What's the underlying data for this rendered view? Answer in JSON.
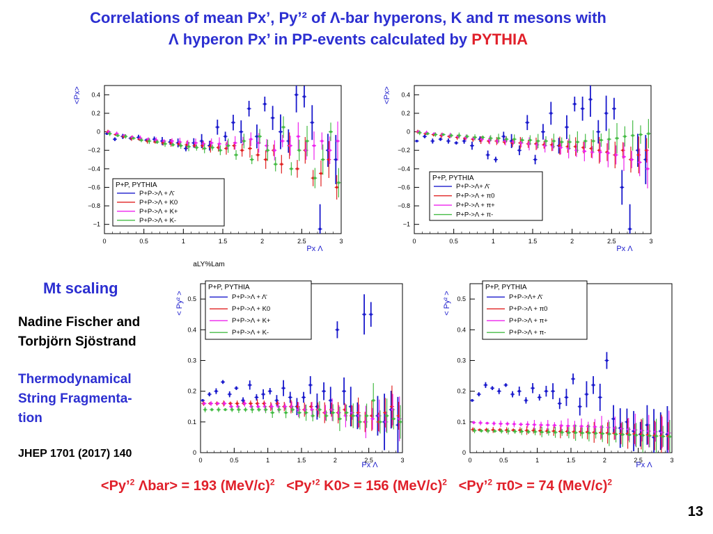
{
  "title": {
    "line1": "Correlations of mean Px’, Py’² of Λ-bar hyperons,  K  and π mesons with",
    "line2_prefix": "Λ  hyperon Px’ in PP-events calculated by",
    "line2_highlight": "PYTHIA"
  },
  "sidebar": {
    "mt_scaling": "Mt scaling",
    "authors_line1": "Nadine Fischer and",
    "authors_line2": "Torbjörn Sjöstrand",
    "tsf_line1": "Thermodynamical",
    "tsf_line2": "String Fragmenta-",
    "tsf_line3": "tion",
    "reference": "JHEP 1701 (2017) 140"
  },
  "bottom_line": {
    "item1_label": "<Py’",
    "item1_rest": " Λbar> = 193 (MeV/c)",
    "item2_label": "<Py’",
    "item2_rest": " K0> = 156 (MeV/c)",
    "item3_label": "<Py’",
    "item3_rest": " π0> = 74 (MeV/c)",
    "sup": "2"
  },
  "page_number": "13",
  "colors": {
    "title": "#2c2fd1",
    "highlight": "#e0202a",
    "series_lambda_bar": "#1a1acc",
    "series_k0_pi0": "#e02020",
    "series_kplus_piplus": "#ee22ee",
    "series_kminus_piminus": "#44bb44"
  },
  "chart_data": [
    {
      "type": "scatter",
      "panel": "top-left",
      "ylabel": "<Px>",
      "xlabel": "Px Λ",
      "below_label": "aLY%Lam",
      "xlim": [
        0,
        3
      ],
      "ylim": [
        -1.1,
        0.5
      ],
      "xticks": [
        "0",
        "0.5",
        "1",
        "1.5",
        "2",
        "2.5",
        "3"
      ],
      "yticks": [
        "0.4",
        "0.2",
        "0",
        "−0.2",
        "−0.4",
        "−0.6",
        "−0.8",
        "−1"
      ],
      "legend_title": "P+P, PYTHIA",
      "legend_placement": "bottom-left",
      "x": [
        0.05,
        0.15,
        0.25,
        0.35,
        0.45,
        0.55,
        0.65,
        0.75,
        0.85,
        0.95,
        1.05,
        1.15,
        1.25,
        1.35,
        1.45,
        1.55,
        1.65,
        1.75,
        1.85,
        1.95,
        2.05,
        2.15,
        2.25,
        2.35,
        2.45,
        2.55,
        2.65,
        2.75,
        2.85,
        2.95
      ],
      "series": [
        {
          "name": "P+P->Λ + Λ̄",
          "values": [
            -0.02,
            -0.08,
            -0.05,
            -0.07,
            -0.06,
            -0.09,
            -0.08,
            -0.1,
            -0.11,
            -0.12,
            -0.18,
            -0.12,
            -0.1,
            -0.15,
            0.05,
            -0.05,
            0.1,
            0.0,
            0.25,
            -0.05,
            0.3,
            0.15,
            0.0,
            -0.1,
            0.4,
            0.38,
            0.1,
            -1.05,
            -0.2,
            -0.3
          ]
        },
        {
          "name": "P+P->Λ + K0",
          "values": [
            0.0,
            -0.03,
            -0.05,
            -0.07,
            -0.08,
            -0.1,
            -0.11,
            -0.12,
            -0.12,
            -0.13,
            -0.14,
            -0.15,
            -0.15,
            -0.16,
            -0.17,
            -0.18,
            -0.15,
            -0.2,
            -0.18,
            -0.25,
            -0.3,
            -0.2,
            -0.35,
            -0.15,
            -0.4,
            -0.2,
            -0.5,
            -0.45,
            -0.3,
            -0.6
          ]
        },
        {
          "name": "P+P->Λ + K+",
          "values": [
            0.0,
            -0.02,
            -0.04,
            -0.06,
            -0.07,
            -0.08,
            -0.09,
            -0.1,
            -0.1,
            -0.11,
            -0.12,
            -0.12,
            -0.13,
            -0.12,
            -0.13,
            -0.14,
            -0.12,
            -0.1,
            -0.08,
            -0.12,
            -0.15,
            -0.2,
            -0.1,
            -0.15,
            -0.05,
            -0.2,
            -0.15,
            -0.1,
            -0.2,
            -0.1
          ]
        },
        {
          "name": "P+P->Λ + K-",
          "values": [
            -0.02,
            -0.04,
            -0.05,
            -0.07,
            -0.09,
            -0.1,
            -0.11,
            -0.13,
            -0.14,
            -0.15,
            -0.16,
            -0.17,
            -0.18,
            -0.17,
            -0.2,
            -0.15,
            -0.25,
            -0.1,
            -0.3,
            -0.05,
            -0.2,
            -0.35,
            0.05,
            -0.4,
            -0.2,
            -0.1,
            -0.5,
            -0.3,
            0.0,
            -0.55
          ]
        }
      ]
    },
    {
      "type": "scatter",
      "panel": "top-right",
      "ylabel": "<Px>",
      "xlabel": "Px Λ",
      "xlim": [
        0,
        3
      ],
      "ylim": [
        -1.1,
        0.5
      ],
      "xticks": [
        "0",
        "0.5",
        "1",
        "1.5",
        "2",
        "2.5",
        "3"
      ],
      "yticks": [
        "0.4",
        "0.2",
        "0",
        "−0.2",
        "−0.4",
        "−0.6",
        "−0.8",
        "−1"
      ],
      "legend_title": "P+P, PYTHIA",
      "legend_placement": "bottom-left",
      "x": [
        0.05,
        0.15,
        0.25,
        0.35,
        0.45,
        0.55,
        0.65,
        0.75,
        0.85,
        0.95,
        1.05,
        1.15,
        1.25,
        1.35,
        1.45,
        1.55,
        1.65,
        1.75,
        1.85,
        1.95,
        2.05,
        2.15,
        2.25,
        2.35,
        2.45,
        2.55,
        2.65,
        2.75,
        2.85,
        2.95
      ],
      "series": [
        {
          "name": "P+P->Λ+ Λ̄",
          "values": [
            -0.1,
            -0.05,
            -0.1,
            -0.08,
            -0.1,
            -0.12,
            -0.1,
            -0.15,
            -0.08,
            -0.25,
            -0.3,
            -0.05,
            -0.1,
            -0.2,
            0.1,
            -0.3,
            0.0,
            0.2,
            -0.15,
            0.05,
            0.3,
            0.25,
            0.35,
            0.0,
            0.2,
            0.25,
            -0.6,
            -1.05,
            -0.2,
            -0.3
          ]
        },
        {
          "name": "P+P->Λ + π0",
          "values": [
            0.0,
            -0.02,
            -0.03,
            -0.04,
            -0.05,
            -0.06,
            -0.07,
            -0.08,
            -0.09,
            -0.1,
            -0.1,
            -0.11,
            -0.12,
            -0.12,
            -0.13,
            -0.13,
            -0.14,
            -0.14,
            -0.15,
            -0.16,
            -0.16,
            -0.17,
            -0.18,
            -0.2,
            -0.22,
            -0.25,
            -0.2,
            -0.3,
            -0.25,
            -0.2
          ]
        },
        {
          "name": "P+P->Λ + π+",
          "values": [
            0.0,
            -0.01,
            -0.02,
            -0.03,
            -0.04,
            -0.05,
            -0.06,
            -0.07,
            -0.08,
            -0.09,
            -0.1,
            -0.1,
            -0.11,
            -0.12,
            -0.13,
            -0.14,
            -0.15,
            -0.16,
            -0.17,
            -0.18,
            -0.2,
            -0.21,
            -0.22,
            -0.22,
            -0.23,
            -0.25,
            -0.27,
            -0.3,
            -0.33,
            -0.4
          ]
        },
        {
          "name": "P+P->Λ + π-",
          "values": [
            -0.01,
            -0.02,
            -0.03,
            -0.03,
            -0.04,
            -0.04,
            -0.05,
            -0.06,
            -0.06,
            -0.07,
            -0.07,
            -0.08,
            -0.08,
            -0.09,
            -0.09,
            -0.1,
            -0.1,
            -0.1,
            -0.11,
            -0.11,
            -0.11,
            -0.1,
            -0.1,
            -0.09,
            -0.08,
            -0.07,
            -0.05,
            -0.04,
            -0.03,
            -0.02
          ]
        }
      ]
    },
    {
      "type": "scatter",
      "panel": "bottom-left",
      "ylabel": "< Py² >",
      "xlabel": "Px Λ",
      "xlim": [
        0,
        3
      ],
      "ylim": [
        0,
        0.55
      ],
      "xticks": [
        "0",
        "0.5",
        "1",
        "1.5",
        "2",
        "2.5",
        "3"
      ],
      "yticks": [
        "0.5",
        "0.4",
        "0.3",
        "0.2",
        "0.1",
        "0"
      ],
      "legend_title": "P+P, PYTHIA",
      "legend_placement": "top-left",
      "x": [
        0.05,
        0.15,
        0.25,
        0.35,
        0.45,
        0.55,
        0.65,
        0.75,
        0.85,
        0.95,
        1.05,
        1.15,
        1.25,
        1.35,
        1.45,
        1.55,
        1.65,
        1.75,
        1.85,
        1.95,
        2.05,
        2.15,
        2.25,
        2.35,
        2.45,
        2.55,
        2.65,
        2.75,
        2.85,
        2.95
      ],
      "series": [
        {
          "name": "P+P->Λ + Λ̄",
          "values": [
            0.17,
            0.19,
            0.2,
            0.23,
            0.19,
            0.21,
            0.17,
            0.22,
            0.18,
            0.19,
            0.2,
            0.17,
            0.21,
            0.18,
            0.15,
            0.18,
            0.22,
            0.15,
            0.2,
            0.17,
            0.4,
            0.2,
            0.15,
            0.12,
            0.45,
            0.45,
            0.12,
            0.1,
            0.14,
            0.09
          ]
        },
        {
          "name": "P+P->Λ + K0",
          "values": [
            0.16,
            0.16,
            0.16,
            0.16,
            0.16,
            0.16,
            0.16,
            0.16,
            0.16,
            0.16,
            0.15,
            0.16,
            0.15,
            0.15,
            0.15,
            0.14,
            0.15,
            0.14,
            0.13,
            0.14,
            0.13,
            0.14,
            0.12,
            0.13,
            0.1,
            0.12,
            0.1,
            0.13,
            0.15,
            0.12
          ]
        },
        {
          "name": "P+P->Λ + K+",
          "values": [
            0.16,
            0.16,
            0.16,
            0.16,
            0.15,
            0.15,
            0.16,
            0.15,
            0.15,
            0.15,
            0.15,
            0.15,
            0.15,
            0.15,
            0.14,
            0.14,
            0.14,
            0.14,
            0.13,
            0.14,
            0.13,
            0.12,
            0.13,
            0.12,
            0.1,
            0.11,
            0.12,
            0.1,
            0.14,
            0.11
          ]
        },
        {
          "name": "P+P->Λ + K-",
          "values": [
            0.14,
            0.14,
            0.14,
            0.14,
            0.14,
            0.14,
            0.14,
            0.14,
            0.14,
            0.14,
            0.13,
            0.14,
            0.13,
            0.14,
            0.13,
            0.13,
            0.12,
            0.14,
            0.12,
            0.13,
            0.11,
            0.13,
            0.12,
            0.1,
            0.12,
            0.17,
            0.1,
            0.12,
            0.11,
            0.1
          ]
        }
      ]
    },
    {
      "type": "scatter",
      "panel": "bottom-right",
      "ylabel": "< Py² >",
      "xlabel": "Px Λ",
      "xlim": [
        0,
        3
      ],
      "ylim": [
        0,
        0.55
      ],
      "xticks": [
        "0",
        "0.5",
        "1",
        "1.5",
        "2",
        "2.5",
        "3"
      ],
      "yticks": [
        "0.5",
        "0.4",
        "0.3",
        "0.2",
        "0.1",
        "0"
      ],
      "legend_title": "P+P, PYTHIA",
      "legend_placement": "top-left",
      "x": [
        0.05,
        0.15,
        0.25,
        0.35,
        0.45,
        0.55,
        0.65,
        0.75,
        0.85,
        0.95,
        1.05,
        1.15,
        1.25,
        1.35,
        1.45,
        1.55,
        1.65,
        1.75,
        1.85,
        1.95,
        2.05,
        2.15,
        2.25,
        2.35,
        2.45,
        2.55,
        2.65,
        2.75,
        2.85,
        2.95
      ],
      "series": [
        {
          "name": "P+P->Λ+ Λ̄",
          "values": [
            0.17,
            0.19,
            0.22,
            0.21,
            0.2,
            0.22,
            0.19,
            0.2,
            0.17,
            0.21,
            0.18,
            0.2,
            0.2,
            0.16,
            0.18,
            0.24,
            0.15,
            0.19,
            0.22,
            0.18,
            0.3,
            0.11,
            0.08,
            0.1,
            0.07,
            0.06,
            0.09,
            0.05,
            0.07,
            0.06
          ]
        },
        {
          "name": "P+P->Λ + π0",
          "values": [
            0.075,
            0.074,
            0.074,
            0.074,
            0.074,
            0.073,
            0.073,
            0.073,
            0.072,
            0.072,
            0.071,
            0.07,
            0.07,
            0.069,
            0.069,
            0.068,
            0.068,
            0.067,
            0.066,
            0.065,
            0.064,
            0.063,
            0.062,
            0.062,
            0.061,
            0.06,
            0.058,
            0.056,
            0.055,
            0.054
          ]
        },
        {
          "name": "P+P->Λ + π+",
          "values": [
            0.098,
            0.097,
            0.096,
            0.095,
            0.094,
            0.094,
            0.093,
            0.092,
            0.092,
            0.091,
            0.09,
            0.09,
            0.089,
            0.088,
            0.087,
            0.087,
            0.086,
            0.085,
            0.084,
            0.083,
            0.082,
            0.08,
            0.078,
            0.076,
            0.074,
            0.072,
            0.07,
            0.068,
            0.066,
            0.064
          ]
        },
        {
          "name": "P+P->Λ + π-",
          "values": [
            0.072,
            0.071,
            0.071,
            0.07,
            0.07,
            0.07,
            0.069,
            0.069,
            0.068,
            0.068,
            0.067,
            0.067,
            0.066,
            0.066,
            0.065,
            0.065,
            0.064,
            0.064,
            0.063,
            0.062,
            0.061,
            0.06,
            0.059,
            0.058,
            0.057,
            0.056,
            0.055,
            0.054,
            0.053,
            0.052
          ]
        }
      ]
    }
  ]
}
